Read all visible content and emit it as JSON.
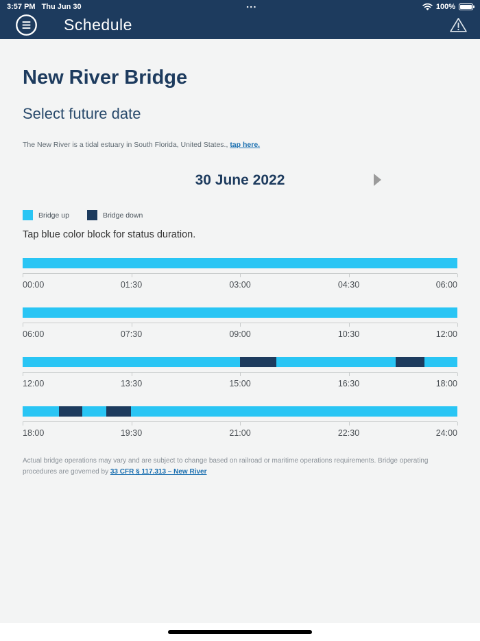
{
  "status_bar": {
    "time": "3:57 PM",
    "date": "Thu Jun 30",
    "multitask_dots": "•••",
    "battery_percent": "100%"
  },
  "nav": {
    "title": "Schedule"
  },
  "page": {
    "title": "New River Bridge",
    "subtitle": "Select future date",
    "description": "The New River is a tidal estuary in South Florida, United States.,",
    "description_link": "tap here.",
    "selected_date": "30 June 2022",
    "legend": [
      {
        "name": "bridge-up",
        "label": "Bridge up",
        "color": "#29c5f4"
      },
      {
        "name": "bridge-down",
        "label": "Bridge down",
        "color": "#1d3b5e"
      }
    ],
    "hint": "Tap blue color block for status duration."
  },
  "chart_data": {
    "type": "timeline",
    "window_hours": 6,
    "colors": {
      "up": "#29c5f4",
      "down": "#1d3b5e"
    },
    "rows": [
      {
        "start": "00:00",
        "end": "06:00",
        "ticks": [
          "00:00",
          "01:30",
          "03:00",
          "04:30",
          "06:00"
        ],
        "down_segments": []
      },
      {
        "start": "06:00",
        "end": "12:00",
        "ticks": [
          "06:00",
          "07:30",
          "09:00",
          "10:30",
          "12:00"
        ],
        "down_segments": []
      },
      {
        "start": "12:00",
        "end": "18:00",
        "ticks": [
          "12:00",
          "13:30",
          "15:00",
          "16:30",
          "18:00"
        ],
        "down_segments": [
          {
            "from_h": 3.0,
            "to_h": 3.5
          },
          {
            "from_h": 5.15,
            "to_h": 5.55
          }
        ]
      },
      {
        "start": "18:00",
        "end": "24:00",
        "ticks": [
          "18:00",
          "19:30",
          "21:00",
          "22:30",
          "24:00"
        ],
        "down_segments": [
          {
            "from_h": 0.5,
            "to_h": 0.82
          },
          {
            "from_h": 1.15,
            "to_h": 1.5
          }
        ]
      }
    ]
  },
  "footer": {
    "disclaimer_prefix": "Actual bridge operations may vary and are subject to change based on railroad or maritime operations requirements. Bridge operating procedures are governed by",
    "link": "33 CFR § 117.313 – New River"
  }
}
